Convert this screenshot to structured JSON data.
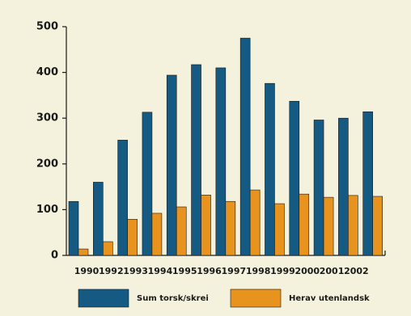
{
  "chart_data": {
    "type": "bar",
    "categories": [
      "1990",
      "1992",
      "1993",
      "1994",
      "1995",
      "1996",
      "1997",
      "1998",
      "1999",
      "2000",
      "2001",
      "2002",
      null
    ],
    "series": [
      {
        "name": "Sum torsk/skrei",
        "color": "#145a82",
        "values": [
          118,
          160,
          252,
          313,
          394,
          417,
          410,
          475,
          376,
          337,
          296,
          300,
          314
        ]
      },
      {
        "name": "Herav utenlandsk",
        "color": "#e8931e",
        "values": [
          14,
          30,
          79,
          92,
          106,
          132,
          118,
          143,
          113,
          134,
          127,
          131,
          129
        ]
      }
    ],
    "ylim": [
      0,
      500
    ],
    "yticks": [
      0,
      100,
      200,
      300,
      400,
      500
    ],
    "grid": false
  }
}
